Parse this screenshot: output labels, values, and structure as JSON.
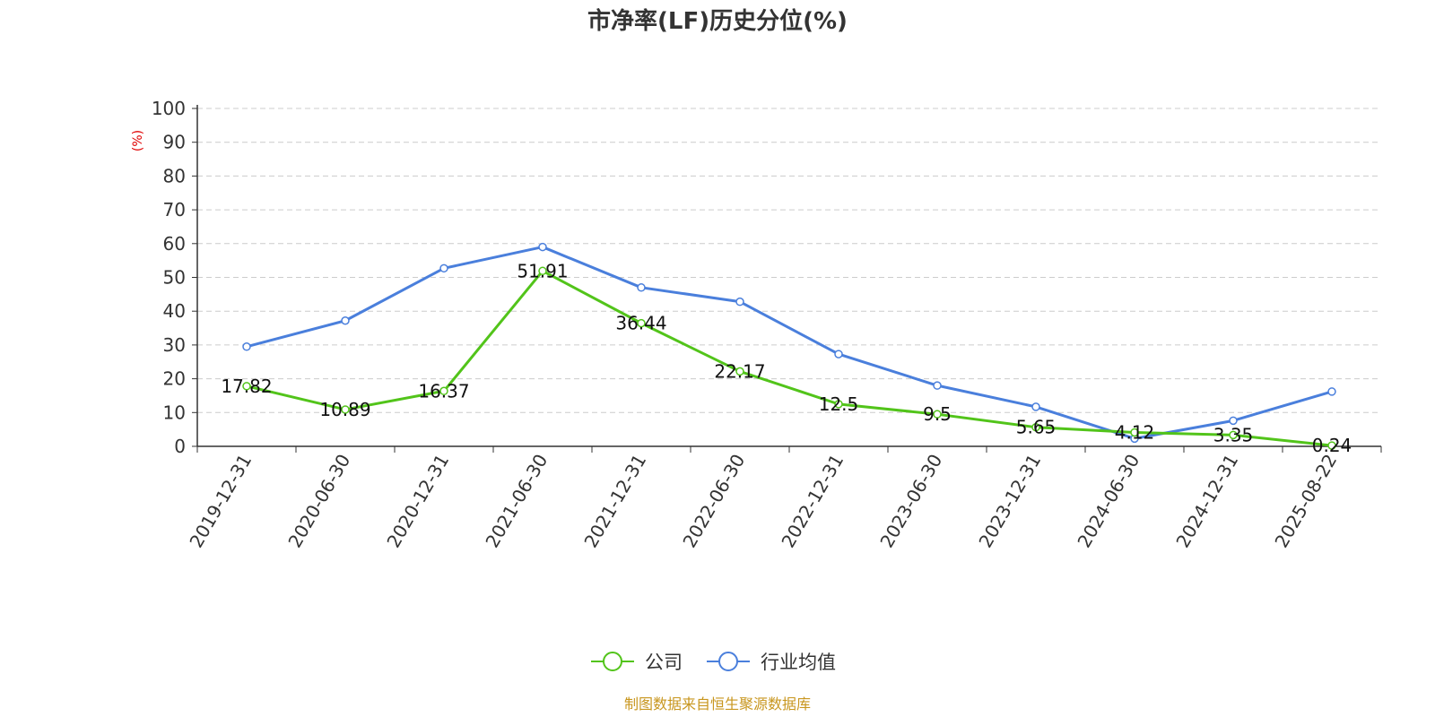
{
  "chart_data": {
    "type": "line",
    "title": "市净率(LF)历史分位(%)",
    "ylabel": "(%)",
    "ylim": [
      0,
      100
    ],
    "yticks": [
      "0",
      "10",
      "20",
      "30",
      "40",
      "50",
      "60",
      "70",
      "80",
      "90",
      "100"
    ],
    "grid": true,
    "categories": [
      "2019-12-31",
      "2020-06-30",
      "2020-12-31",
      "2021-06-30",
      "2021-12-31",
      "2022-06-30",
      "2022-12-31",
      "2023-06-30",
      "2023-12-31",
      "2024-06-30",
      "2024-12-31",
      "2025-08-22"
    ],
    "series": [
      {
        "name": "公司",
        "color": "#52c41a",
        "values": [
          17.82,
          10.89,
          16.37,
          51.91,
          36.44,
          22.17,
          12.5,
          9.5,
          5.65,
          4.12,
          3.35,
          0.24
        ],
        "labels": [
          "17.82",
          "10.89",
          "16.37",
          "51.91",
          "36.44",
          "22.17",
          "12.5",
          "9.5",
          "5.65",
          "4.12",
          "3.35",
          "0.24"
        ]
      },
      {
        "name": "行业均值",
        "color": "#4a7fdc",
        "values": [
          29.5,
          37.2,
          52.7,
          59.0,
          47.0,
          42.8,
          27.3,
          18.0,
          11.7,
          2.3,
          7.6,
          16.2
        ]
      }
    ],
    "legend_position": "bottom-center",
    "source": "制图数据来自恒生聚源数据库",
    "colors": {
      "unit_label": "#e00000",
      "source": "#c8961e",
      "grid": "#cccccc",
      "axis": "#333333"
    }
  }
}
